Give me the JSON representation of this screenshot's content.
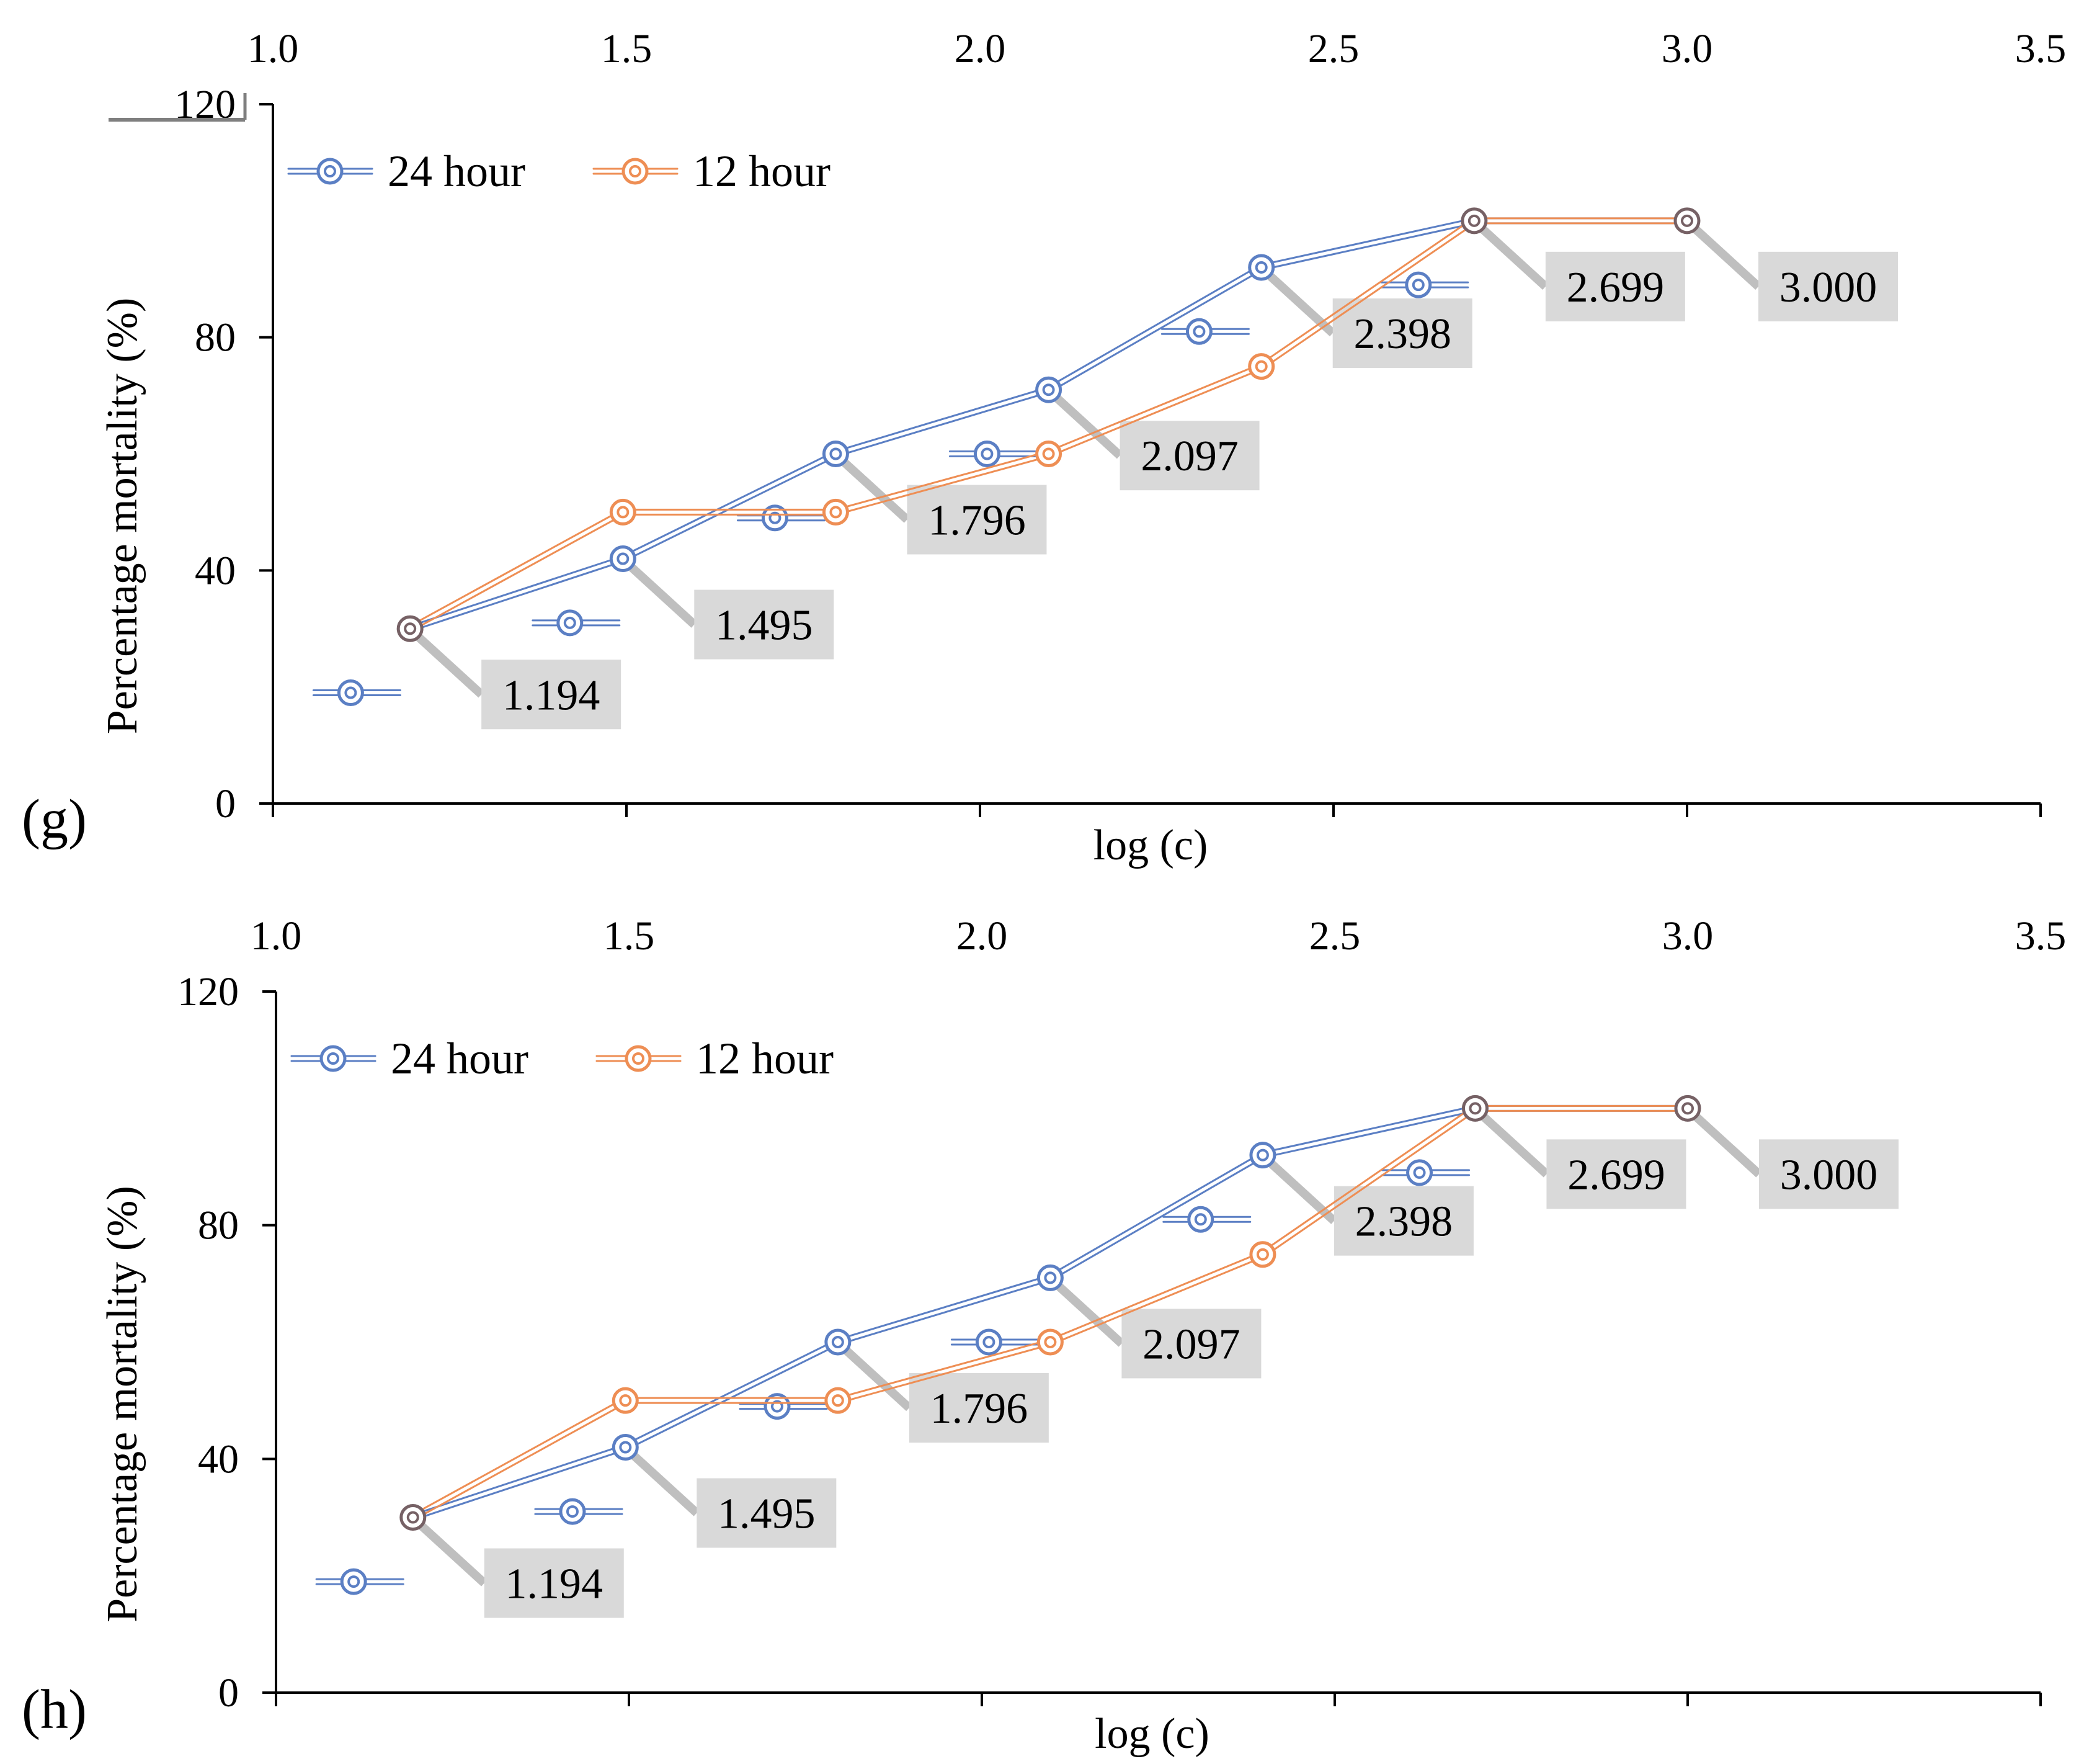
{
  "chart_data": [
    {
      "type": "line",
      "panel_label": "(g)",
      "xlabel": "log (c)",
      "ylabel": "Percentage mortality (%)",
      "xlim": [
        1.0,
        3.5
      ],
      "ylim": [
        0,
        120
      ],
      "x_ticks": [
        "1.0",
        "1.5",
        "2.0",
        "2.5",
        "3.0",
        "3.5"
      ],
      "y_ticks": [
        "0",
        "40",
        "80",
        "120"
      ],
      "legend": [
        "24 hour",
        "12 hour"
      ],
      "legend_position": "top-left",
      "series": [
        {
          "name": "24 hour",
          "color": "#5b7fc4",
          "x": [
            1.194,
            1.495,
            1.796,
            2.097,
            2.398,
            2.699,
            3.0
          ],
          "values": [
            30,
            42,
            60,
            71,
            92,
            100,
            100
          ]
        },
        {
          "name": "12 hour",
          "color": "#ee8e54",
          "x": [
            1.194,
            1.495,
            1.796,
            2.097,
            2.398,
            2.699,
            3.0
          ],
          "values": [
            30,
            50,
            50,
            60,
            75,
            100,
            100
          ]
        }
      ],
      "legend_markers": [
        {
          "x": 1.11,
          "y": 19
        },
        {
          "x": 1.42,
          "y": 31
        },
        {
          "x": 1.71,
          "y": 49
        },
        {
          "x": 2.01,
          "y": 60
        },
        {
          "x": 2.31,
          "y": 81
        },
        {
          "x": 2.62,
          "y": 89
        }
      ],
      "data_labels": [
        "1.194",
        "1.495",
        "1.796",
        "2.097",
        "2.398",
        "2.699",
        "3.000"
      ]
    },
    {
      "type": "line",
      "panel_label": "(h)",
      "xlabel": "log (c)",
      "ylabel": "Percentage mortality (%)",
      "xlim": [
        1.0,
        3.5
      ],
      "ylim": [
        0,
        120
      ],
      "x_ticks": [
        "1.0",
        "1.5",
        "2.0",
        "2.5",
        "3.0",
        "3.5"
      ],
      "y_ticks": [
        "0",
        "40",
        "80",
        "120"
      ],
      "legend": [
        "24 hour",
        "12 hour"
      ],
      "legend_position": "top-left",
      "series": [
        {
          "name": "24 hour",
          "color": "#5b7fc4",
          "x": [
            1.194,
            1.495,
            1.796,
            2.097,
            2.398,
            2.699,
            3.0
          ],
          "values": [
            30,
            42,
            60,
            71,
            92,
            100,
            100
          ]
        },
        {
          "name": "12 hour",
          "color": "#ee8e54",
          "x": [
            1.194,
            1.495,
            1.796,
            2.097,
            2.398,
            2.699,
            3.0
          ],
          "values": [
            30,
            50,
            50,
            60,
            75,
            100,
            100
          ]
        }
      ],
      "legend_markers": [
        {
          "x": 1.11,
          "y": 19
        },
        {
          "x": 1.42,
          "y": 31
        },
        {
          "x": 1.71,
          "y": 49
        },
        {
          "x": 2.01,
          "y": 60
        },
        {
          "x": 2.31,
          "y": 81
        },
        {
          "x": 2.62,
          "y": 89
        }
      ],
      "data_labels": [
        "1.194",
        "1.495",
        "1.796",
        "2.097",
        "2.398",
        "2.699",
        "3.000"
      ]
    }
  ]
}
